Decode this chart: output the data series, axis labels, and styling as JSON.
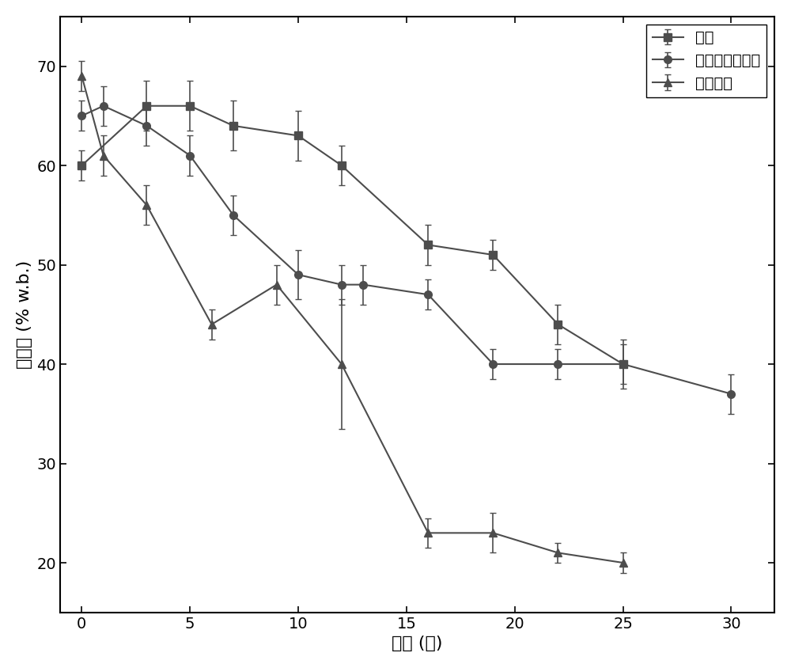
{
  "title": "",
  "xlabel": "时间 (天)",
  "ylabel": "含水率 (% w.b.)",
  "xlim": [
    -1,
    32
  ],
  "ylim": [
    15,
    75
  ],
  "xticks": [
    0,
    5,
    10,
    15,
    20,
    25,
    30
  ],
  "yticks": [
    20,
    30,
    40,
    50,
    60,
    70
  ],
  "series": [
    {
      "label": "污泥",
      "marker": "s",
      "color": "#4d4d4d",
      "x": [
        0,
        3,
        5,
        7,
        10,
        12,
        16,
        19,
        22,
        25
      ],
      "y": [
        60,
        66,
        66,
        64,
        63,
        60,
        52,
        51,
        44,
        40
      ],
      "yerr": [
        1.5,
        2.5,
        2.5,
        2.5,
        2.5,
        2.0,
        2.0,
        1.5,
        2.0,
        2.5
      ]
    },
    {
      "label": "畜禽粪便和沼渣",
      "marker": "o",
      "color": "#4d4d4d",
      "x": [
        0,
        1,
        3,
        5,
        7,
        10,
        12,
        13,
        16,
        19,
        22,
        25,
        30
      ],
      "y": [
        65,
        66,
        64,
        61,
        55,
        49,
        48,
        48,
        47,
        40,
        40,
        40,
        37
      ],
      "yerr": [
        1.5,
        2.0,
        2.0,
        2.0,
        2.0,
        2.5,
        2.0,
        2.0,
        1.5,
        1.5,
        1.5,
        2.0,
        2.0
      ]
    },
    {
      "label": "餐厨垃圾",
      "marker": "^",
      "color": "#4d4d4d",
      "x": [
        0,
        1,
        3,
        6,
        9,
        12,
        16,
        19,
        22,
        25
      ],
      "y": [
        69,
        61,
        56,
        44,
        48,
        40,
        23,
        23,
        21,
        20
      ],
      "yerr": [
        1.5,
        2.0,
        2.0,
        1.5,
        2.0,
        6.5,
        1.5,
        2.0,
        1.0,
        1.0
      ]
    }
  ],
  "background_color": "#ffffff",
  "line_color": "#4d4d4d",
  "markersize": 7,
  "linewidth": 1.5,
  "capsize": 3,
  "elinewidth": 1.2,
  "tick_fontsize": 14,
  "label_fontsize": 16,
  "legend_fontsize": 14
}
